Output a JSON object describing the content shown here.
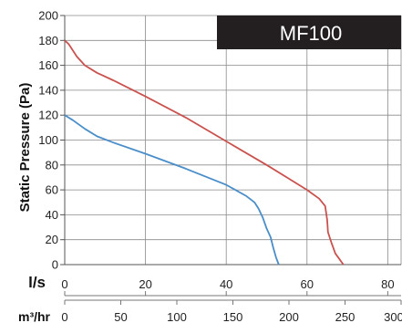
{
  "chart_data": {
    "type": "line",
    "title": "MF100",
    "ylabel": "Static Pressure (Pa)",
    "ylim": [
      0,
      200
    ],
    "yticks": [
      0,
      20,
      40,
      60,
      80,
      100,
      120,
      140,
      160,
      180,
      200
    ],
    "x_axes": [
      {
        "unit": "l/s",
        "range": [
          0,
          83.3
        ],
        "ticks": [
          0,
          20,
          40,
          60,
          80
        ]
      },
      {
        "unit": "m³/hr",
        "range": [
          0,
          300
        ],
        "ticks": [
          0,
          50,
          100,
          150,
          200,
          250,
          300
        ]
      }
    ],
    "grid": true,
    "series": [
      {
        "color": "#c9524f",
        "x_unit": "l/s",
        "points": [
          [
            0,
            180
          ],
          [
            1,
            177
          ],
          [
            3,
            167
          ],
          [
            5,
            160
          ],
          [
            8,
            154
          ],
          [
            12,
            148
          ],
          [
            20,
            135
          ],
          [
            30,
            118
          ],
          [
            40,
            99
          ],
          [
            50,
            80
          ],
          [
            55,
            70
          ],
          [
            60,
            60
          ],
          [
            63,
            53
          ],
          [
            64.5,
            47
          ],
          [
            65,
            36
          ],
          [
            65.2,
            26
          ],
          [
            66,
            18
          ],
          [
            67,
            9
          ],
          [
            69,
            0
          ]
        ]
      },
      {
        "color": "#4a8ec9",
        "x_unit": "l/s",
        "points": [
          [
            0,
            120
          ],
          [
            2,
            116
          ],
          [
            5,
            109
          ],
          [
            8,
            103
          ],
          [
            12,
            98
          ],
          [
            20,
            89
          ],
          [
            30,
            77
          ],
          [
            40,
            64
          ],
          [
            45,
            55
          ],
          [
            47,
            50
          ],
          [
            48,
            45
          ],
          [
            49,
            38
          ],
          [
            50,
            29
          ],
          [
            51,
            22
          ],
          [
            51.6,
            14
          ],
          [
            52.3,
            6
          ],
          [
            53,
            0
          ]
        ]
      }
    ],
    "colors": {
      "grid": "#8a8a8a",
      "banner": "#231f20"
    }
  }
}
